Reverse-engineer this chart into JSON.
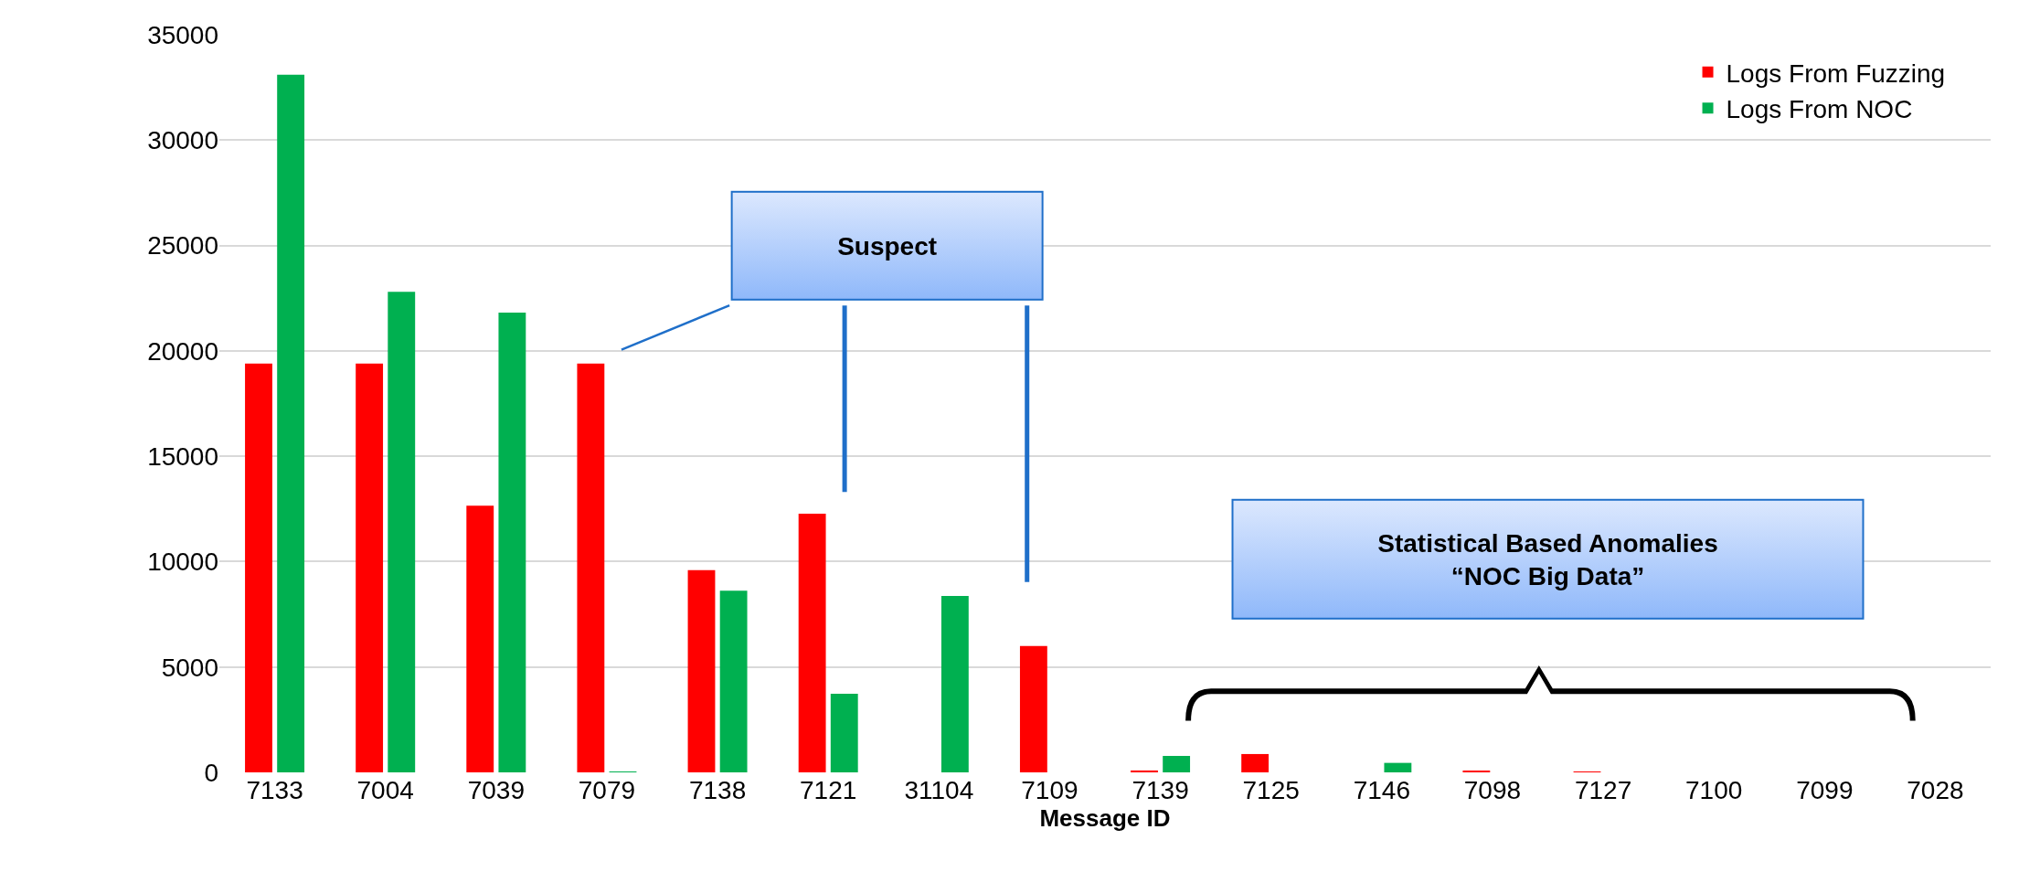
{
  "chart_data": {
    "type": "bar",
    "xlabel": "Message ID",
    "categories": [
      "7133",
      "7004",
      "7039",
      "7079",
      "7138",
      "7121",
      "31104",
      "7109",
      "7139",
      "7125",
      "7146",
      "7098",
      "7127",
      "7100",
      "7099",
      "7028"
    ],
    "series": [
      {
        "name": "Logs From Fuzzing",
        "color": "#ff0000",
        "values": [
          19400,
          19400,
          12650,
          19400,
          9600,
          12270,
          0,
          6000,
          90,
          870,
          0,
          60,
          30,
          0,
          0,
          0
        ]
      },
      {
        "name": "Logs From NOC",
        "color": "#00b050",
        "values": [
          33100,
          22800,
          21820,
          20,
          8620,
          3730,
          8370,
          0,
          780,
          0,
          450,
          0,
          0,
          0,
          0,
          0
        ]
      }
    ],
    "ylim": [
      0,
      35000
    ],
    "yticks": [
      0,
      5000,
      10000,
      15000,
      20000,
      25000,
      30000,
      35000
    ],
    "grid": "y",
    "legend": "top right",
    "annotations": [
      "Suspect",
      "Statistical Based Anomalies\n“NOC Big Data”"
    ]
  }
}
